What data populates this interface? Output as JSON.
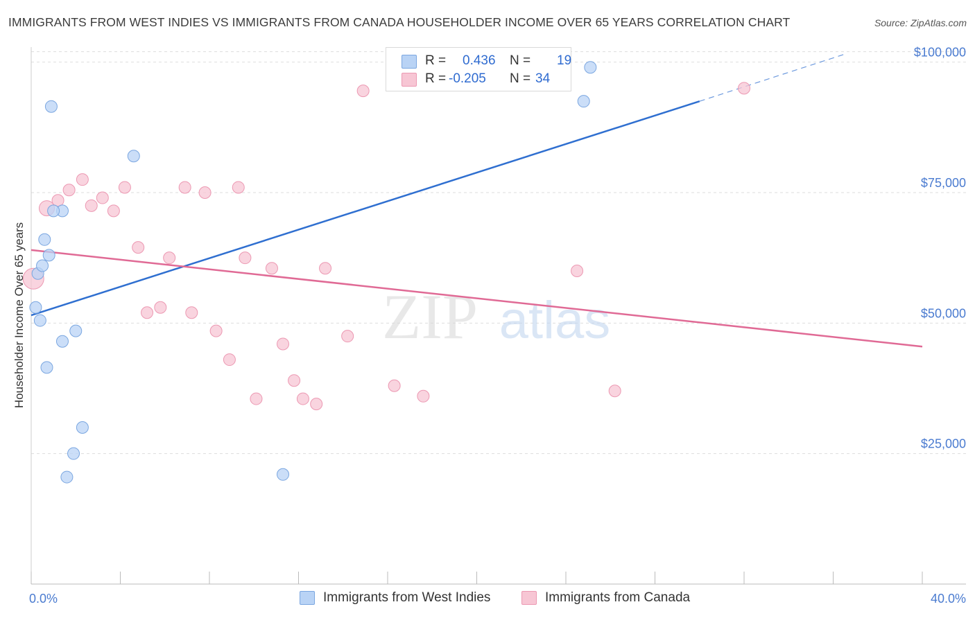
{
  "title": "IMMIGRANTS FROM WEST INDIES VS IMMIGRANTS FROM CANADA HOUSEHOLDER INCOME OVER 65 YEARS CORRELATION CHART",
  "source": "Source: ZipAtlas.com",
  "watermark": {
    "zip": "ZIP",
    "atlas": "atlas"
  },
  "colors": {
    "blue_fill": "#b9d3f5",
    "blue_stroke": "#7aa6e0",
    "blue_line": "#2f6fd0",
    "pink_fill": "#f7c6d4",
    "pink_stroke": "#ec98b2",
    "pink_line": "#e06a95",
    "tick_label": "#4a7bd0",
    "grid": "#dddddd"
  },
  "legend": {
    "r_label": "R =",
    "n_label": "N =",
    "series": [
      {
        "name": "Immigrants from West Indies",
        "r": "0.436",
        "n": "19"
      },
      {
        "name": "Immigrants from Canada",
        "r": "-0.205",
        "n": "34"
      }
    ]
  },
  "chart_data": {
    "type": "scatter",
    "title": "IMMIGRANTS FROM WEST INDIES VS IMMIGRANTS FROM CANADA HOUSEHOLDER INCOME OVER 65 YEARS CORRELATION CHART",
    "xlabel": "",
    "ylabel": "Householder Income Over 65 years",
    "xlim": [
      0,
      40
    ],
    "ylim": [
      0,
      105000
    ],
    "x_tick_labels": [
      "0.0%",
      "40.0%"
    ],
    "y_ticks": [
      25000,
      50000,
      75000,
      100000
    ],
    "y_tick_labels": [
      "$25,000",
      "$50,000",
      "$75,000",
      "$100,000"
    ],
    "grid": true,
    "series": [
      {
        "name": "Immigrants from West Indies",
        "points": [
          [
            0.2,
            53000
          ],
          [
            0.3,
            59500
          ],
          [
            0.4,
            50500
          ],
          [
            0.5,
            61000
          ],
          [
            0.6,
            66000
          ],
          [
            0.7,
            41500
          ],
          [
            0.8,
            63000
          ],
          [
            0.9,
            91500
          ],
          [
            1.4,
            71500
          ],
          [
            1.0,
            71500
          ],
          [
            1.4,
            46500
          ],
          [
            2.0,
            48500
          ],
          [
            2.3,
            30000
          ],
          [
            1.9,
            25000
          ],
          [
            1.6,
            20500
          ],
          [
            4.6,
            82000
          ],
          [
            11.3,
            21000
          ],
          [
            24.8,
            92500
          ],
          [
            25.1,
            99000
          ]
        ],
        "trend": {
          "x0": 0,
          "y0": 51500,
          "x1": 30.0,
          "y1": 92500,
          "dash_to_x": 36.5,
          "dash_to_y": 101500
        }
      },
      {
        "name": "Immigrants from Canada",
        "points": [
          [
            0.1,
            58500
          ],
          [
            0.7,
            72000
          ],
          [
            1.2,
            73500
          ],
          [
            1.7,
            75500
          ],
          [
            2.3,
            77500
          ],
          [
            2.7,
            72500
          ],
          [
            3.2,
            74000
          ],
          [
            3.7,
            71500
          ],
          [
            4.2,
            76000
          ],
          [
            4.8,
            64500
          ],
          [
            5.2,
            52000
          ],
          [
            5.8,
            53000
          ],
          [
            6.2,
            62500
          ],
          [
            6.9,
            76000
          ],
          [
            7.2,
            52000
          ],
          [
            7.8,
            75000
          ],
          [
            8.3,
            48500
          ],
          [
            8.9,
            43000
          ],
          [
            9.3,
            76000
          ],
          [
            9.6,
            62500
          ],
          [
            10.1,
            35500
          ],
          [
            10.8,
            60500
          ],
          [
            11.3,
            46000
          ],
          [
            11.8,
            39000
          ],
          [
            12.2,
            35500
          ],
          [
            12.8,
            34500
          ],
          [
            13.2,
            60500
          ],
          [
            14.2,
            47500
          ],
          [
            14.9,
            94500
          ],
          [
            16.3,
            38000
          ],
          [
            17.6,
            36000
          ],
          [
            24.5,
            60000
          ],
          [
            26.2,
            37000
          ],
          [
            32.0,
            95000
          ]
        ],
        "trend": {
          "x0": 0,
          "y0": 64000,
          "x1": 40,
          "y1": 45500
        }
      }
    ]
  }
}
